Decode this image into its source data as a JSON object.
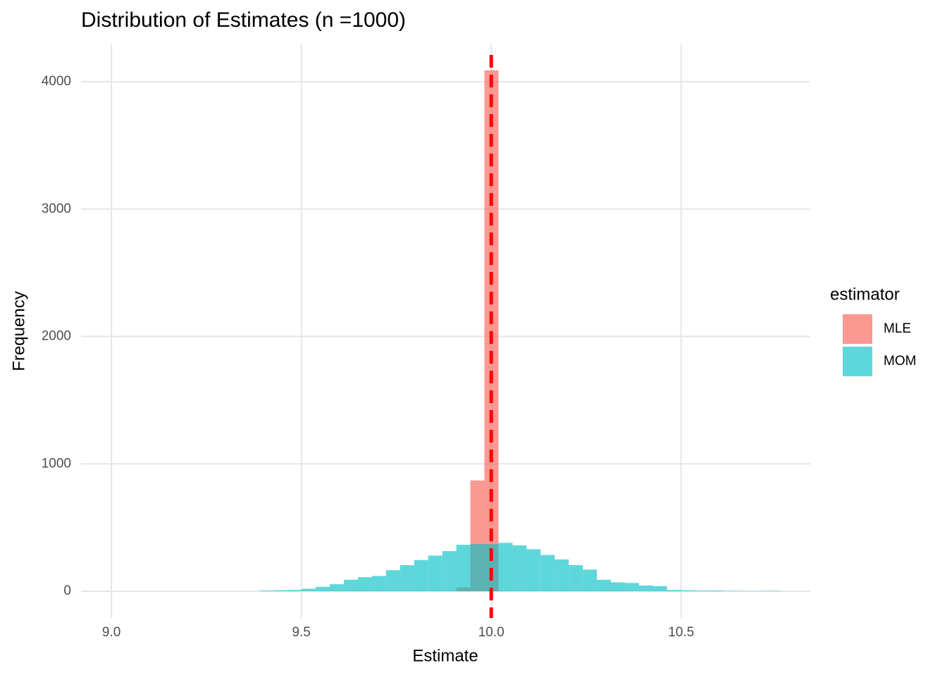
{
  "chart_data": {
    "type": "histogram",
    "title": "Distribution of Estimates (n =1000)",
    "x_label": "Estimate",
    "y_label": "Frequency",
    "legend_title": "estimator",
    "bins": [
      9.39,
      9.427,
      9.464,
      9.501,
      9.538,
      9.575,
      9.612,
      9.649,
      9.686,
      9.723,
      9.76,
      9.797,
      9.834,
      9.871,
      9.908,
      9.945,
      9.982,
      10.019,
      10.056,
      10.093,
      10.13,
      10.167,
      10.204,
      10.241,
      10.278,
      10.315,
      10.352,
      10.389,
      10.426,
      10.463,
      10.5,
      10.537,
      10.574,
      10.611,
      10.648,
      10.685,
      10.722,
      10.759
    ],
    "series": [
      {
        "name": "MLE",
        "color": "#F8766D",
        "values": [
          0,
          0,
          0,
          0,
          0,
          0,
          0,
          0,
          0,
          0,
          0,
          0,
          0,
          0,
          30,
          870,
          4090,
          0,
          0,
          0,
          0,
          0,
          0,
          0,
          0,
          0,
          0,
          0,
          0,
          0,
          0,
          0,
          0,
          0,
          0,
          0,
          0
        ]
      },
      {
        "name": "MOM",
        "color": "#00BFC4",
        "values": [
          5,
          8,
          10,
          20,
          35,
          55,
          90,
          110,
          120,
          165,
          205,
          245,
          280,
          315,
          365,
          370,
          370,
          380,
          360,
          330,
          285,
          250,
          205,
          170,
          90,
          70,
          65,
          45,
          40,
          10,
          8,
          5,
          6,
          3,
          2,
          2,
          3
        ]
      }
    ],
    "vline": 10.0,
    "vline_color": "#FF0000",
    "xlim": [
      8.92,
      10.84
    ],
    "ylim": [
      -210,
      4299
    ],
    "xticks": [
      {
        "value": 9,
        "label": "9.0"
      },
      9.5,
      {
        "value": 10,
        "label": "10.0"
      },
      10.5
    ],
    "yticks": [
      0,
      1000,
      2000,
      3000,
      4000
    ],
    "grid": true
  }
}
